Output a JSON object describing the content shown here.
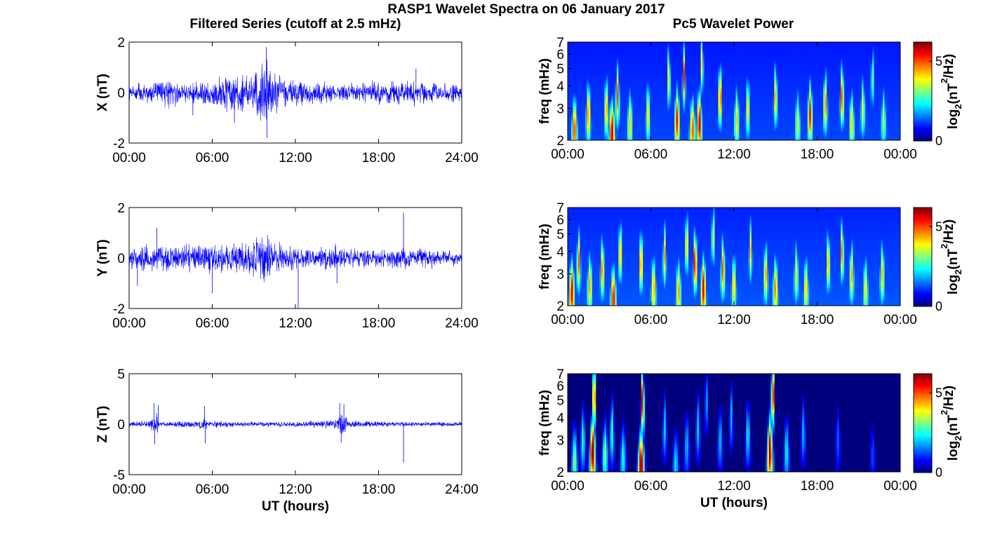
{
  "figure": {
    "title": "RASP1 Wavelet Spectra on 06 January 2017",
    "left_title": "Filtered Series (cutoff at 2.5 mHz)",
    "right_title": "Pc5 Wavelet Power",
    "xlabel": "UT (hours)"
  },
  "colors": {
    "series_line": "#0000ff",
    "colormap": [
      "#00007f",
      "#0000ff",
      "#007fff",
      "#00ffff",
      "#7fff7f",
      "#ffff00",
      "#ff7f00",
      "#ff0000",
      "#7f0000"
    ]
  },
  "colorbar": {
    "label_main": "log",
    "label_sub": "2",
    "label_rest1": "(nT",
    "label_sup": "2",
    "label_rest2": "/Hz)",
    "ticks": [
      "0",
      "5"
    ],
    "range": [
      0,
      6.2
    ]
  },
  "chart_data": [
    {
      "type": "line",
      "id": "X",
      "ylabel": "X (nT)",
      "ylim": [
        -2,
        2
      ],
      "yticks": [
        "2",
        "0",
        "-2"
      ],
      "xticks": [
        "00:00",
        "06:00",
        "12:00",
        "18:00",
        "24:00"
      ],
      "xlim": [
        0,
        24
      ],
      "base_amplitude": 0.18,
      "envelope": [
        [
          0,
          0.25
        ],
        [
          1,
          0.3
        ],
        [
          2,
          0.4
        ],
        [
          3,
          0.55
        ],
        [
          4,
          0.35
        ],
        [
          5,
          0.4
        ],
        [
          6,
          0.55
        ],
        [
          7,
          0.8
        ],
        [
          8,
          0.9
        ],
        [
          9,
          1.0
        ],
        [
          9.8,
          1.6
        ],
        [
          10.2,
          0.9
        ],
        [
          11,
          0.6
        ],
        [
          12,
          0.5
        ],
        [
          14,
          0.35
        ],
        [
          16,
          0.3
        ],
        [
          18,
          0.4
        ],
        [
          20,
          0.5
        ],
        [
          21,
          0.4
        ],
        [
          22,
          0.35
        ],
        [
          24,
          0.3
        ]
      ],
      "spikes": [
        [
          9.9,
          1.8
        ],
        [
          9.95,
          -1.8
        ],
        [
          7.6,
          -1.2
        ],
        [
          4.6,
          -0.9
        ],
        [
          20.7,
          0.95
        ]
      ]
    },
    {
      "type": "line",
      "id": "Y",
      "ylabel": "Y (nT)",
      "ylim": [
        -2,
        2
      ],
      "yticks": [
        "2",
        "0",
        "-2"
      ],
      "xticks": [
        "00:00",
        "06:00",
        "12:00",
        "18:00",
        "24:00"
      ],
      "xlim": [
        0,
        24
      ],
      "base_amplitude": 0.18,
      "envelope": [
        [
          0,
          0.35
        ],
        [
          1,
          0.45
        ],
        [
          2,
          0.5
        ],
        [
          3,
          0.5
        ],
        [
          4,
          0.45
        ],
        [
          5,
          0.5
        ],
        [
          6,
          0.65
        ],
        [
          7,
          0.55
        ],
        [
          8,
          0.6
        ],
        [
          9,
          0.8
        ],
        [
          9.7,
          1.3
        ],
        [
          10.3,
          0.6
        ],
        [
          11,
          0.5
        ],
        [
          12,
          0.5
        ],
        [
          13,
          0.35
        ],
        [
          14,
          0.5
        ],
        [
          15,
          0.5
        ],
        [
          16,
          0.35
        ],
        [
          18,
          0.3
        ],
        [
          19,
          0.35
        ],
        [
          20,
          0.4
        ],
        [
          21,
          0.3
        ],
        [
          24,
          0.25
        ]
      ],
      "spikes": [
        [
          19.8,
          1.8
        ],
        [
          12.2,
          -2.0
        ],
        [
          6.0,
          -1.4
        ],
        [
          15.0,
          -1.0
        ],
        [
          0.6,
          -1.1
        ],
        [
          2.0,
          1.2
        ]
      ]
    },
    {
      "type": "line",
      "id": "Z",
      "ylabel": "Z (nT)",
      "ylim": [
        -5,
        5
      ],
      "yticks": [
        "5",
        "0",
        "-5"
      ],
      "xticks": [
        "00:00",
        "06:00",
        "12:00",
        "18:00",
        "24:00"
      ],
      "xlabel": "UT (hours)",
      "xlim": [
        0,
        24
      ],
      "base_amplitude": 0.1,
      "envelope": [
        [
          0,
          0.2
        ],
        [
          1.5,
          0.4
        ],
        [
          2.0,
          1.5
        ],
        [
          2.2,
          0.3
        ],
        [
          5.3,
          0.4
        ],
        [
          5.5,
          1.2
        ],
        [
          5.7,
          0.3
        ],
        [
          10,
          0.25
        ],
        [
          12,
          0.25
        ],
        [
          15.0,
          0.5
        ],
        [
          15.2,
          1.6
        ],
        [
          15.5,
          1.4
        ],
        [
          15.8,
          0.4
        ],
        [
          18,
          0.25
        ],
        [
          24,
          0.2
        ]
      ],
      "spikes": [
        [
          1.8,
          2.1
        ],
        [
          1.85,
          -2.0
        ],
        [
          2.1,
          1.9
        ],
        [
          5.45,
          1.8
        ],
        [
          5.5,
          -1.9
        ],
        [
          15.2,
          2.1
        ],
        [
          15.5,
          2.0
        ],
        [
          15.3,
          -1.8
        ],
        [
          19.8,
          -3.8
        ]
      ]
    },
    {
      "type": "heatmap",
      "id": "Xspec",
      "ylabel": "freq (mHz)",
      "ylim": [
        2,
        7
      ],
      "yticks": [
        "2",
        "3",
        "4",
        "5",
        "6",
        "7"
      ],
      "xticks": [
        "00:00",
        "06:00",
        "12:00",
        "18:00",
        "00:00"
      ],
      "xlim": [
        0,
        24
      ],
      "base_level": 1.2,
      "bursts": [
        [
          0.5,
          2.3,
          5.2
        ],
        [
          1.5,
          2.8,
          4.8
        ],
        [
          2.8,
          3.0,
          4.5
        ],
        [
          3.2,
          2.2,
          6.0
        ],
        [
          3.6,
          3.5,
          5.0
        ],
        [
          4.5,
          2.5,
          4.2
        ],
        [
          5.8,
          2.8,
          4.0
        ],
        [
          7.3,
          4.5,
          4.5
        ],
        [
          7.9,
          2.6,
          5.5
        ],
        [
          8.4,
          4.5,
          5.2
        ],
        [
          9.0,
          2.3,
          5.0
        ],
        [
          9.5,
          2.5,
          5.8
        ],
        [
          9.7,
          5.5,
          4.8
        ],
        [
          11.0,
          3.5,
          5.2
        ],
        [
          12.2,
          2.6,
          4.2
        ],
        [
          13.0,
          3.0,
          4.0
        ],
        [
          15.0,
          3.5,
          4.5
        ],
        [
          16.6,
          2.5,
          3.8
        ],
        [
          17.5,
          2.8,
          5.5
        ],
        [
          18.6,
          3.2,
          4.8
        ],
        [
          19.8,
          3.5,
          5.2
        ],
        [
          20.5,
          2.5,
          4.2
        ],
        [
          21.3,
          3.0,
          3.8
        ],
        [
          22.0,
          4.5,
          3.5
        ],
        [
          22.8,
          2.6,
          3.5
        ]
      ]
    },
    {
      "type": "heatmap",
      "id": "Yspec",
      "ylabel": "freq (mHz)",
      "ylim": [
        2,
        7
      ],
      "yticks": [
        "2",
        "3",
        "4",
        "5",
        "6",
        "7"
      ],
      "xticks": [
        "00:00",
        "06:00",
        "12:00",
        "18:00",
        "00:00"
      ],
      "xlim": [
        0,
        24
      ],
      "base_level": 1.3,
      "bursts": [
        [
          0.3,
          2.4,
          5.8
        ],
        [
          0.8,
          3.5,
          5.0
        ],
        [
          1.6,
          2.6,
          4.5
        ],
        [
          2.5,
          3.2,
          4.8
        ],
        [
          3.3,
          2.2,
          5.5
        ],
        [
          3.8,
          4.0,
          4.8
        ],
        [
          5.3,
          3.5,
          5.0
        ],
        [
          6.2,
          2.5,
          4.5
        ],
        [
          7.0,
          3.8,
          4.5
        ],
        [
          8.0,
          2.4,
          4.5
        ],
        [
          8.6,
          4.5,
          5.0
        ],
        [
          9.2,
          3.5,
          5.8
        ],
        [
          9.8,
          2.5,
          5.8
        ],
        [
          10.5,
          5.0,
          4.5
        ],
        [
          11.2,
          3.2,
          5.0
        ],
        [
          12.0,
          2.6,
          4.2
        ],
        [
          13.2,
          4.0,
          4.2
        ],
        [
          14.3,
          3.0,
          4.6
        ],
        [
          15.0,
          2.5,
          4.8
        ],
        [
          16.5,
          3.0,
          4.0
        ],
        [
          17.2,
          2.5,
          4.2
        ],
        [
          18.8,
          3.5,
          4.5
        ],
        [
          19.8,
          4.0,
          5.0
        ],
        [
          20.5,
          3.0,
          4.5
        ],
        [
          21.5,
          2.5,
          4.0
        ],
        [
          22.7,
          3.0,
          4.4
        ]
      ]
    },
    {
      "type": "heatmap",
      "id": "Zspec",
      "ylabel": "freq (mHz)",
      "ylim": [
        2,
        7
      ],
      "yticks": [
        "2",
        "3",
        "4",
        "5",
        "6",
        "7"
      ],
      "xticks": [
        "00:00",
        "06:00",
        "12:00",
        "18:00",
        "00:00"
      ],
      "xlabel": "UT (hours)",
      "xlim": [
        0,
        24
      ],
      "base_level": 0.35,
      "bursts": [
        [
          0.5,
          2.3,
          3.2
        ],
        [
          1.1,
          3.0,
          2.6
        ],
        [
          1.8,
          2.6,
          6.5
        ],
        [
          1.9,
          5.5,
          6.5
        ],
        [
          2.7,
          2.5,
          3.2
        ],
        [
          3.2,
          3.3,
          2.8
        ],
        [
          4.0,
          2.4,
          2.5
        ],
        [
          5.3,
          2.2,
          6.3
        ],
        [
          5.4,
          5.0,
          6.3
        ],
        [
          7.0,
          3.5,
          2.2
        ],
        [
          7.8,
          2.2,
          2.2
        ],
        [
          8.6,
          2.8,
          2.0
        ],
        [
          9.4,
          3.5,
          2.2
        ],
        [
          10.0,
          5.0,
          2.0
        ],
        [
          11.0,
          3.0,
          2.0
        ],
        [
          11.8,
          4.0,
          2.0
        ],
        [
          13.0,
          3.2,
          2.4
        ],
        [
          14.6,
          2.6,
          6.4
        ],
        [
          14.8,
          5.5,
          6.4
        ],
        [
          15.8,
          2.6,
          2.4
        ],
        [
          17.0,
          3.3,
          2.0
        ],
        [
          19.5,
          3.0,
          1.4
        ],
        [
          22.0,
          2.5,
          1.2
        ]
      ]
    }
  ]
}
